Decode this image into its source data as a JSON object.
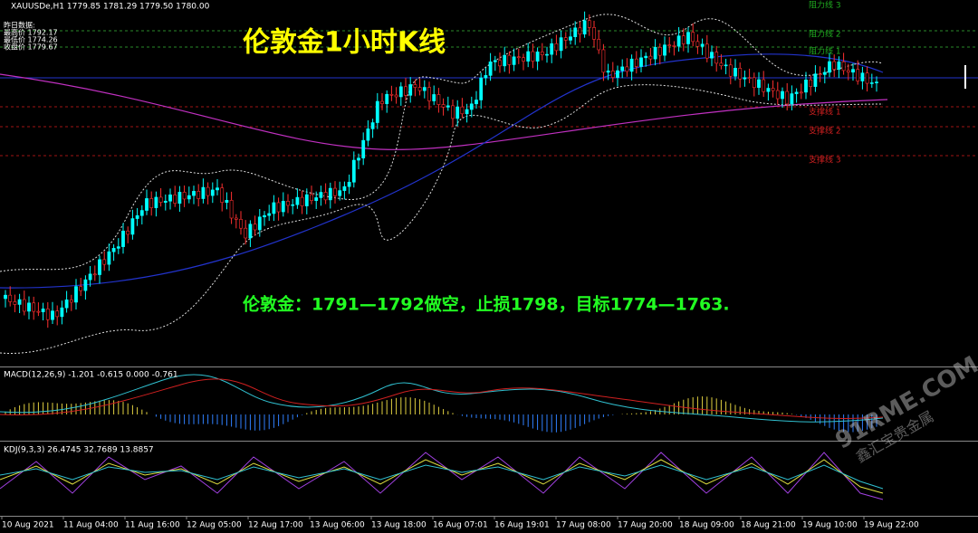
{
  "header": {
    "symbol": "XAUUSDe,H1  1779.85 1781.29 1779.50 1780.00"
  },
  "info_box": [
    "昨日数据:",
    "最高价 1792.17",
    "最低价 1774.26",
    "收盘价 1779.67"
  ],
  "title": "伦敦金1小时K线",
  "strategy": "伦敦金：1791—1792做空，止损1798，目标1774—1763.",
  "levels": [
    "阻力线 3",
    "阻力线 2",
    "阻力线 1",
    "支撑线 1",
    "支撑线 2",
    "支撑线 3"
  ],
  "macd_label": "MACD(12,26,9) -1.201 -0.615 0.000 -0.761",
  "kdj_label": "KDJ(9,3,3) 26.4745 32.7689 13.8857",
  "x_labels": [
    "10 Aug 2021",
    "11 Aug 04:00",
    "11 Aug 16:00",
    "12 Aug 05:00",
    "12 Aug 17:00",
    "13 Aug 06:00",
    "13 Aug 18:00",
    "16 Aug 07:01",
    "16 Aug 19:01",
    "17 Aug 08:00",
    "17 Aug 20:00",
    "18 Aug 09:00",
    "18 Aug 21:00",
    "19 Aug 10:00",
    "19 Aug 22:00"
  ],
  "watermark": [
    "91RME.COM",
    "鑫汇宝贵金属"
  ]
}
